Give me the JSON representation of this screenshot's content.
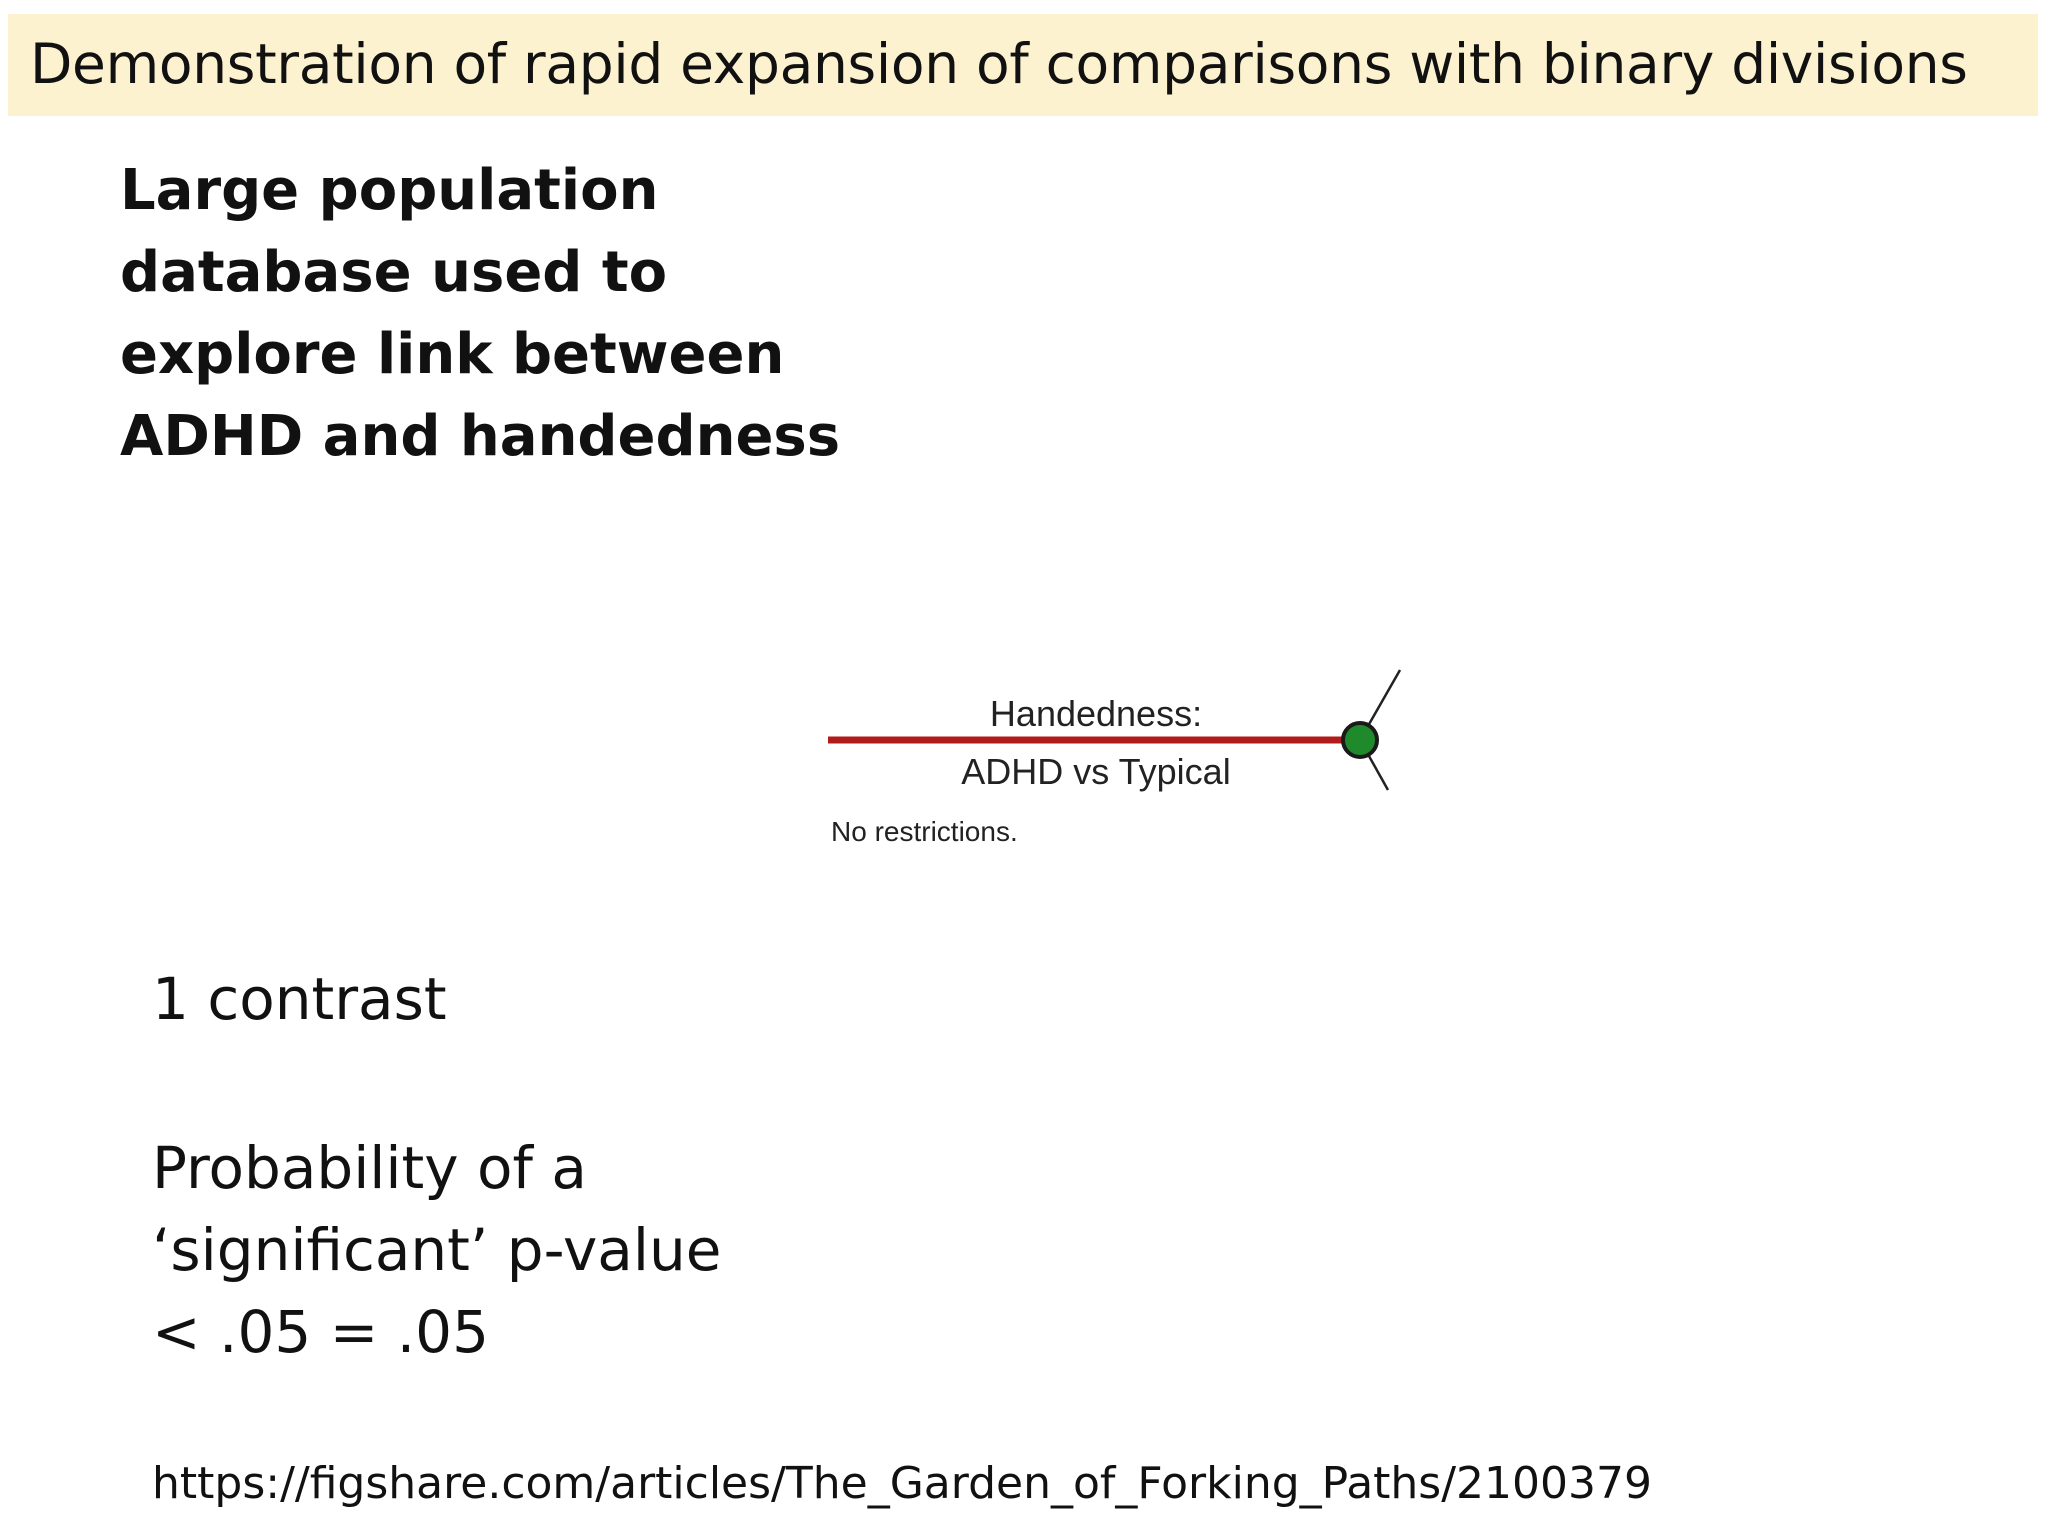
{
  "slide": {
    "title": "Demonstration of rapid expansion of comparisons with binary divisions",
    "intro": "Large population database used to explore link between ADHD and handedness",
    "contrast_count": "1 contrast",
    "probability_lines": [
      "Probability of a",
      "‘significant’ p-value",
      "< .05 = .05"
    ],
    "source_url": "https://figshare.com/articles/The_Garden_of_Forking_Paths/2100379"
  },
  "diagram": {
    "branch_label_top": "Handedness:",
    "branch_label_bottom": "ADHD vs Typical",
    "restriction_note": "No restrictions.",
    "colors": {
      "branch_line": "#b01c1c",
      "node_fill": "#1f8a2c",
      "node_stroke": "#1a1a1a"
    }
  }
}
